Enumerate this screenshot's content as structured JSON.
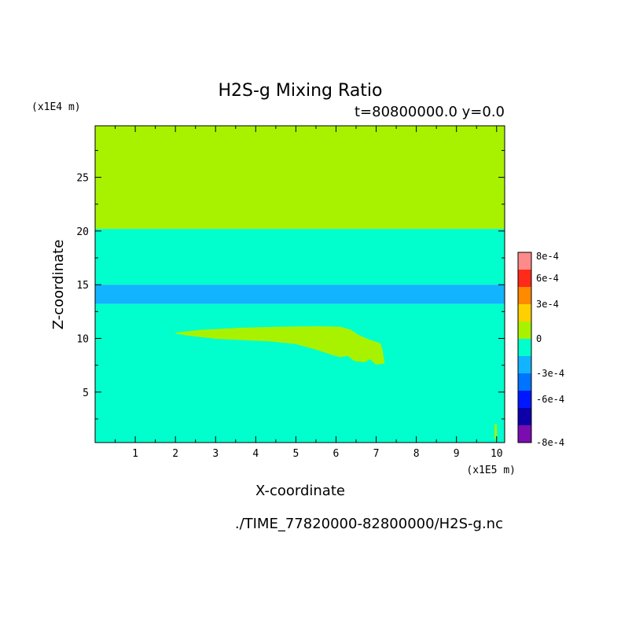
{
  "chart_data": {
    "type": "heatmap",
    "title": "H2S-g Mixing Ratio",
    "subtitle": "t=80800000.0 y=0.0",
    "xlabel": "X-coordinate",
    "ylabel": "Z-coordinate",
    "x_multiplier": "(x1E5 m)",
    "y_multiplier": "(x1E4 m)",
    "xlim": [
      0,
      10.2
    ],
    "ylim": [
      0.3,
      29.8
    ],
    "x_ticks": [
      "1",
      "2",
      "3",
      "4",
      "5",
      "6",
      "7",
      "8",
      "9",
      "10"
    ],
    "y_ticks": [
      "5",
      "10",
      "15",
      "20",
      "25"
    ],
    "colorbar": {
      "ticks": [
        "8e-4",
        "6e-4",
        "3e-4",
        "0",
        "-3e-4",
        "-6e-4",
        "-8e-4"
      ],
      "colors": [
        "#7a0cb0",
        "#0d00a8",
        "#0018ff",
        "#0073ff",
        "#12b4ff",
        "#00ffcc",
        "#a8f200",
        "#ffd000",
        "#ff8a00",
        "#ff2a1a",
        "#ff8a8a"
      ]
    },
    "regions": [
      {
        "name": "upper layer",
        "z_range": [
          20.2,
          29.8
        ],
        "value": "0 to 3e-4",
        "color": "#a8f200"
      },
      {
        "name": "middle layer",
        "z_range": [
          15.0,
          20.2
        ],
        "value": "-3e-4 to 0",
        "color": "#00ffcc"
      },
      {
        "name": "negative band",
        "z_range": [
          13.2,
          15.0
        ],
        "value": "-3e-4",
        "color": "#12b4ff"
      },
      {
        "name": "lower layer",
        "z_range": [
          0.3,
          13.2
        ],
        "value": "-3e-4 to 0",
        "color": "#00ffcc"
      },
      {
        "name": "plume",
        "x_range": [
          2.0,
          7.2
        ],
        "z_range": [
          7.5,
          11.1
        ],
        "value": "0 to 3e-4",
        "color": "#a8f200"
      }
    ],
    "grid": false
  },
  "footer": {
    "file_path": "./TIME_77820000-82800000/H2S-g.nc"
  }
}
